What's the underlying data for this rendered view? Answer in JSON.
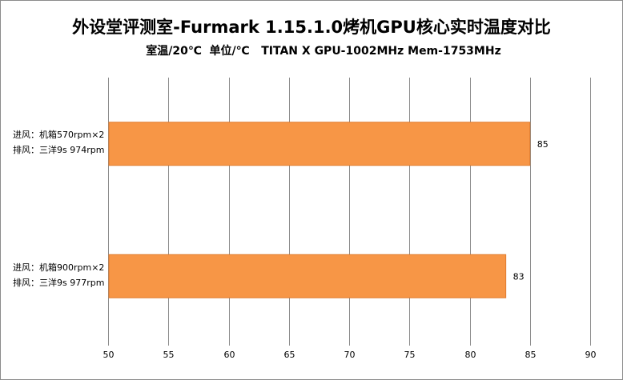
{
  "chart_data": {
    "type": "bar",
    "orientation": "horizontal",
    "title": "外设堂评测室-Furmark  1.15.1.0烤机GPU核心实时温度对比",
    "subtitle": "室温/20℃  单位/℃   TITAN X GPU-1002MHz Mem-1753MHz",
    "categories": [
      [
        "进风：机箱570rpm×2",
        "排风：三洋9s 974rpm"
      ],
      [
        "进风：机箱900rpm×2",
        "排风：三洋9s 977rpm"
      ]
    ],
    "values": [
      85,
      83
    ],
    "xlim": [
      50,
      90
    ],
    "xticks": [
      "50",
      "55",
      "60",
      "65",
      "70",
      "75",
      "80",
      "85",
      "90"
    ],
    "grid": "vertical",
    "bar_color": "#f79646",
    "bar_border": "#e07b2e",
    "grid_color": "#8c8c8c"
  }
}
